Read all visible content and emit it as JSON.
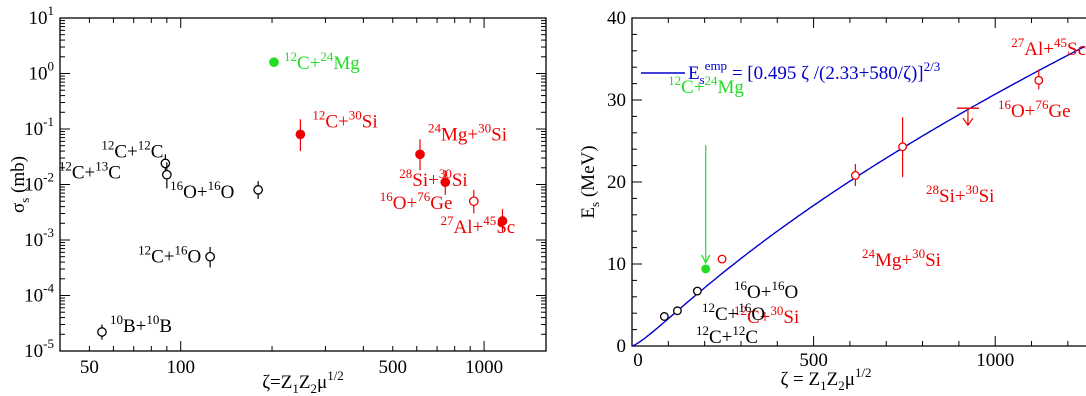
{
  "colors": {
    "black": "#000000",
    "red": "#ee0000",
    "green": "#22dd22",
    "fit": "#0000cc"
  },
  "chart_data": [
    {
      "type": "scatter",
      "xscale": "log",
      "yscale": "log",
      "xlim": [
        40,
        1600
      ],
      "ylim": [
        1e-05,
        10
      ],
      "x_ticks": [
        "50",
        "100",
        "500",
        "1000"
      ],
      "xlabel": {
        "main": "ζ=Z",
        "s1": "1",
        "mid": "Z",
        "s2": "2",
        "mu": "μ",
        "sup": "1/2"
      },
      "ylabel": {
        "main": "σ",
        "sub": "s",
        "rest": " (mb)"
      },
      "points": [
        {
          "label": [
            "10",
            "B+",
            "10",
            "B"
          ],
          "x": 55,
          "y": 2.2e-05,
          "err": [
            1.6e-05,
            3e-05
          ],
          "color": "black",
          "filled": false
        },
        {
          "label": [
            "12",
            "C+",
            "16",
            "O"
          ],
          "x": 125,
          "y": 0.0005,
          "err": [
            0.00032,
            0.00075
          ],
          "color": "black",
          "filled": false
        },
        {
          "label": [
            "16",
            "O+",
            "16",
            "O"
          ],
          "x": 180,
          "y": 0.008,
          "err": [
            0.0055,
            0.0115
          ],
          "color": "black",
          "filled": false
        },
        {
          "label": [
            "12",
            "C+",
            "12",
            "C"
          ],
          "x": 89,
          "y": 0.024,
          "err": [
            0.014,
            0.035
          ],
          "color": "black",
          "filled": false
        },
        {
          "label": [
            "12",
            "C+",
            "13",
            "C"
          ],
          "x": 90,
          "y": 0.015,
          "err": [
            0.0085,
            0.025
          ],
          "color": "black",
          "filled": false
        },
        {
          "label": [
            "12",
            "C+",
            "24",
            "Mg"
          ],
          "x": 203,
          "y": 1.6,
          "err": null,
          "color": "green",
          "filled": true
        },
        {
          "label": [
            "12",
            "C+",
            "30",
            "Si"
          ],
          "x": 248,
          "y": 0.08,
          "err": [
            0.04,
            0.15
          ],
          "color": "red",
          "filled": true
        },
        {
          "label": [
            "24",
            "Mg+",
            "30",
            "Si"
          ],
          "x": 615,
          "y": 0.035,
          "err": [
            0.018,
            0.065
          ],
          "color": "red",
          "filled": true
        },
        {
          "label": [
            "28",
            "Si+",
            "30",
            "Si"
          ],
          "x": 745,
          "y": 0.011,
          "err": [
            0.0065,
            0.018
          ],
          "color": "red",
          "filled": true
        },
        {
          "label": [
            "16",
            "O+",
            "76",
            "Ge"
          ],
          "x": 925,
          "y": 0.005,
          "err": [
            0.003,
            0.008
          ],
          "color": "red",
          "filled": false
        },
        {
          "label": [
            "27",
            "Al+",
            "45",
            "Sc"
          ],
          "x": 1150,
          "y": 0.0022,
          "err": [
            0.0014,
            0.0036
          ],
          "color": "red",
          "filled": true
        }
      ]
    },
    {
      "type": "scatter",
      "xscale": "linear",
      "yscale": "linear",
      "xlim": [
        0,
        1250
      ],
      "ylim": [
        0,
        40
      ],
      "x_ticks": [
        "0",
        "500",
        "1000"
      ],
      "y_ticks": [
        "0",
        "10",
        "20",
        "30",
        "40"
      ],
      "xlabel": {
        "main": "ζ = Z",
        "s1": "1",
        "mid": "Z",
        "s2": "2",
        "mu": "μ",
        "sup": "1/2"
      },
      "ylabel": {
        "main": "E",
        "sub": "s",
        "rest": " (MeV)"
      },
      "fit": {
        "legend": {
          "pre": "E",
          "sub": "s",
          "sup": "emp",
          "eq": " = [0.495 ζ /(2.33+580/ζ)]",
          "pow": "2/3"
        },
        "coef": 0.495,
        "a": 2.33,
        "b": 580,
        "exponent": 0.6667,
        "color": "fit"
      },
      "points": [
        {
          "label": null,
          "x": 89,
          "y": 3.6,
          "err": null,
          "color": "black",
          "filled": false
        },
        {
          "label": null,
          "x": 125,
          "y": 4.3,
          "err": null,
          "color": "black",
          "filled": false
        },
        {
          "label": null,
          "x": 180,
          "y": 6.7,
          "err": null,
          "color": "black",
          "filled": false
        },
        {
          "label": null,
          "x": 203,
          "y": 9.4,
          "err": null,
          "color": "green",
          "filled": true
        },
        {
          "label": null,
          "x": 248,
          "y": 10.6,
          "err": null,
          "color": "red",
          "filled": false
        },
        {
          "label": null,
          "x": 615,
          "y": 20.8,
          "err": [
            19.5,
            22.2
          ],
          "color": "red",
          "filled": false
        },
        {
          "label": null,
          "x": 745,
          "y": 24.3,
          "err": [
            20.6,
            27.9
          ],
          "color": "red",
          "filled": false
        },
        {
          "label": null,
          "x": 1120,
          "y": 32.4,
          "err": [
            31.3,
            33.7
          ],
          "color": "red",
          "filled": false
        }
      ],
      "limit": {
        "x": 925,
        "y": 29.0,
        "color": "red"
      },
      "labels": [
        {
          "text": [
            "12",
            "C+",
            "24",
            "Mg"
          ],
          "color": "green"
        },
        {
          "text": [
            "12",
            "C+",
            "30",
            "Si"
          ],
          "color": "red"
        },
        {
          "text": [
            "24",
            "Mg+",
            "30",
            "Si"
          ],
          "color": "red"
        },
        {
          "text": [
            "28",
            "Si+",
            "30",
            "Si"
          ],
          "color": "red"
        },
        {
          "text": [
            "16",
            "O+",
            "76",
            "Ge"
          ],
          "color": "red"
        },
        {
          "text": [
            "27",
            "Al+",
            "45",
            "Sc"
          ],
          "color": "red"
        },
        {
          "text": [
            "16",
            "O+",
            "16",
            "O"
          ],
          "color": "black"
        },
        {
          "text": [
            "12",
            "C+",
            "16",
            "O"
          ],
          "color": "black"
        },
        {
          "text": [
            "12",
            "C+",
            "12",
            "C"
          ],
          "color": "black"
        }
      ]
    }
  ]
}
